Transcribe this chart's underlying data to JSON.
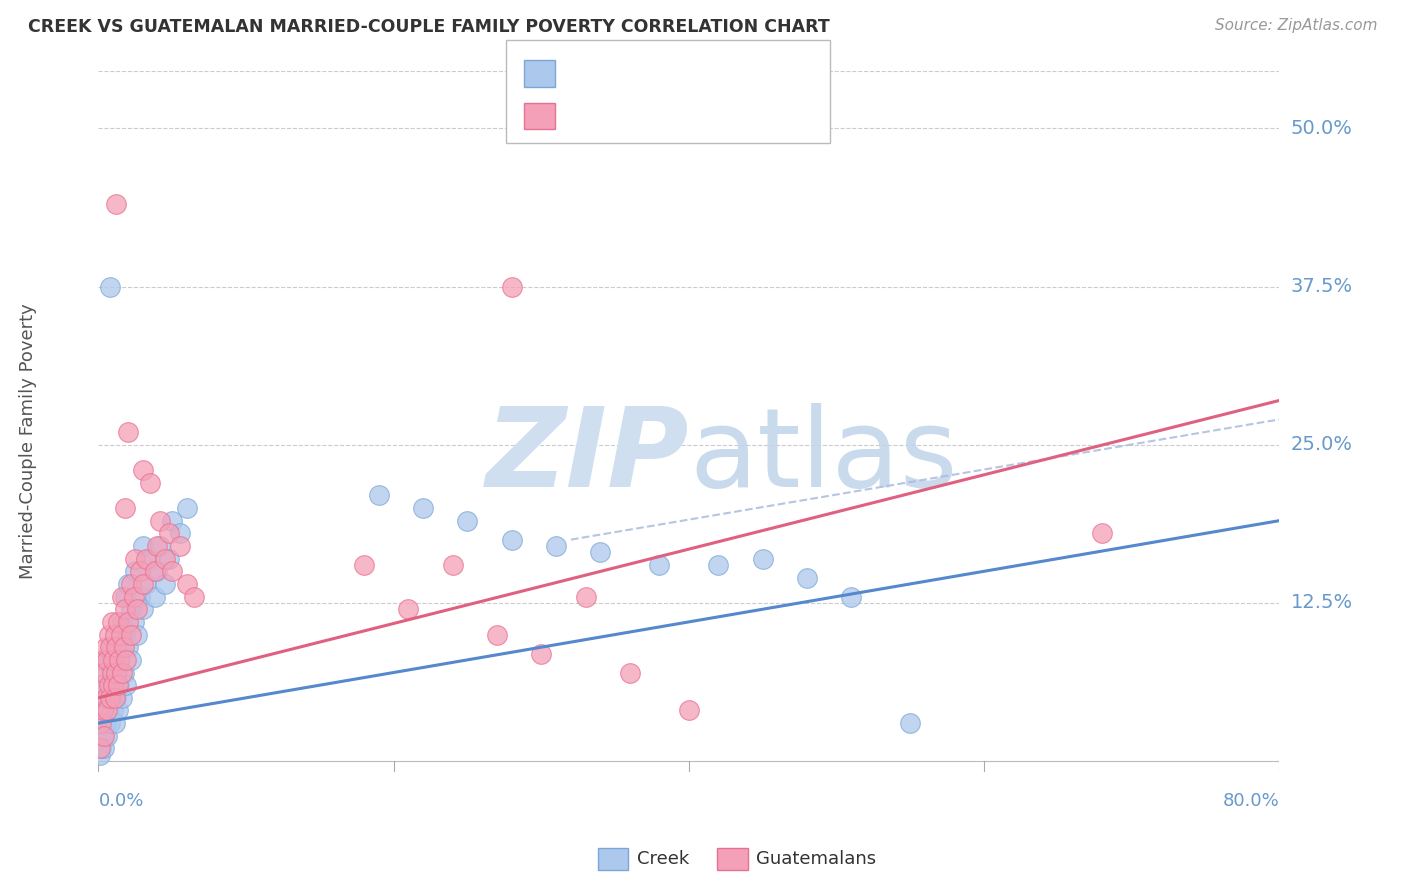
{
  "title": "CREEK VS GUATEMALAN MARRIED-COUPLE FAMILY POVERTY CORRELATION CHART",
  "source": "Source: ZipAtlas.com",
  "ylabel": "Married-Couple Family Poverty",
  "ytick_labels": [
    "50.0%",
    "37.5%",
    "25.0%",
    "12.5%"
  ],
  "ytick_values": [
    0.5,
    0.375,
    0.25,
    0.125
  ],
  "xmin": 0.0,
  "xmax": 0.8,
  "ymin": -0.04,
  "ymax": 0.545,
  "creek_color": "#adc8ed",
  "guatemalan_color": "#f4a0b8",
  "creek_edge_color": "#7ba7d8",
  "guatemalan_edge_color": "#e87090",
  "creek_line_color": "#5588cc",
  "guatemalan_line_color": "#e06080",
  "watermark_color": "#d0dff0",
  "background_color": "#ffffff",
  "grid_color": "#cccccc",
  "tick_label_color": "#6699cc",
  "title_color": "#333333",
  "source_color": "#999999",
  "ylabel_color": "#555555",
  "creek_points": [
    [
      0.001,
      0.005
    ],
    [
      0.002,
      0.01
    ],
    [
      0.002,
      0.03
    ],
    [
      0.003,
      0.02
    ],
    [
      0.003,
      0.04
    ],
    [
      0.004,
      0.01
    ],
    [
      0.004,
      0.06
    ],
    [
      0.005,
      0.03
    ],
    [
      0.005,
      0.07
    ],
    [
      0.006,
      0.02
    ],
    [
      0.006,
      0.05
    ],
    [
      0.007,
      0.04
    ],
    [
      0.007,
      0.08
    ],
    [
      0.008,
      0.03
    ],
    [
      0.008,
      0.06
    ],
    [
      0.009,
      0.05
    ],
    [
      0.009,
      0.09
    ],
    [
      0.01,
      0.04
    ],
    [
      0.01,
      0.07
    ],
    [
      0.011,
      0.03
    ],
    [
      0.011,
      0.06
    ],
    [
      0.012,
      0.05
    ],
    [
      0.012,
      0.08
    ],
    [
      0.013,
      0.04
    ],
    [
      0.013,
      0.07
    ],
    [
      0.014,
      0.06
    ],
    [
      0.015,
      0.09
    ],
    [
      0.016,
      0.05
    ],
    [
      0.016,
      0.11
    ],
    [
      0.017,
      0.07
    ],
    [
      0.018,
      0.1
    ],
    [
      0.018,
      0.13
    ],
    [
      0.019,
      0.06
    ],
    [
      0.02,
      0.09
    ],
    [
      0.02,
      0.14
    ],
    [
      0.022,
      0.08
    ],
    [
      0.022,
      0.12
    ],
    [
      0.024,
      0.11
    ],
    [
      0.025,
      0.15
    ],
    [
      0.026,
      0.1
    ],
    [
      0.028,
      0.13
    ],
    [
      0.03,
      0.12
    ],
    [
      0.03,
      0.17
    ],
    [
      0.032,
      0.14
    ],
    [
      0.035,
      0.16
    ],
    [
      0.038,
      0.13
    ],
    [
      0.04,
      0.15
    ],
    [
      0.042,
      0.17
    ],
    [
      0.045,
      0.14
    ],
    [
      0.048,
      0.16
    ],
    [
      0.05,
      0.19
    ],
    [
      0.055,
      0.18
    ],
    [
      0.06,
      0.2
    ],
    [
      0.008,
      0.375
    ],
    [
      0.19,
      0.21
    ],
    [
      0.22,
      0.2
    ],
    [
      0.25,
      0.19
    ],
    [
      0.28,
      0.175
    ],
    [
      0.31,
      0.17
    ],
    [
      0.34,
      0.165
    ],
    [
      0.38,
      0.155
    ],
    [
      0.42,
      0.155
    ],
    [
      0.45,
      0.16
    ],
    [
      0.48,
      0.145
    ],
    [
      0.51,
      0.13
    ],
    [
      0.55,
      0.03
    ]
  ],
  "guatemalan_points": [
    [
      0.001,
      0.01
    ],
    [
      0.002,
      0.03
    ],
    [
      0.002,
      0.06
    ],
    [
      0.003,
      0.04
    ],
    [
      0.003,
      0.08
    ],
    [
      0.004,
      0.02
    ],
    [
      0.004,
      0.07
    ],
    [
      0.005,
      0.05
    ],
    [
      0.005,
      0.09
    ],
    [
      0.006,
      0.04
    ],
    [
      0.006,
      0.08
    ],
    [
      0.007,
      0.06
    ],
    [
      0.007,
      0.1
    ],
    [
      0.008,
      0.05
    ],
    [
      0.008,
      0.09
    ],
    [
      0.009,
      0.07
    ],
    [
      0.009,
      0.11
    ],
    [
      0.01,
      0.06
    ],
    [
      0.01,
      0.08
    ],
    [
      0.011,
      0.05
    ],
    [
      0.011,
      0.1
    ],
    [
      0.012,
      0.07
    ],
    [
      0.012,
      0.09
    ],
    [
      0.013,
      0.06
    ],
    [
      0.013,
      0.11
    ],
    [
      0.014,
      0.08
    ],
    [
      0.015,
      0.1
    ],
    [
      0.016,
      0.07
    ],
    [
      0.016,
      0.13
    ],
    [
      0.017,
      0.09
    ],
    [
      0.018,
      0.12
    ],
    [
      0.018,
      0.2
    ],
    [
      0.019,
      0.08
    ],
    [
      0.02,
      0.11
    ],
    [
      0.02,
      0.26
    ],
    [
      0.022,
      0.1
    ],
    [
      0.022,
      0.14
    ],
    [
      0.024,
      0.13
    ],
    [
      0.025,
      0.16
    ],
    [
      0.026,
      0.12
    ],
    [
      0.028,
      0.15
    ],
    [
      0.03,
      0.14
    ],
    [
      0.03,
      0.23
    ],
    [
      0.032,
      0.16
    ],
    [
      0.035,
      0.22
    ],
    [
      0.038,
      0.15
    ],
    [
      0.04,
      0.17
    ],
    [
      0.042,
      0.19
    ],
    [
      0.045,
      0.16
    ],
    [
      0.048,
      0.18
    ],
    [
      0.05,
      0.15
    ],
    [
      0.055,
      0.17
    ],
    [
      0.06,
      0.14
    ],
    [
      0.065,
      0.13
    ],
    [
      0.012,
      0.44
    ],
    [
      0.28,
      0.375
    ],
    [
      0.18,
      0.155
    ],
    [
      0.21,
      0.12
    ],
    [
      0.24,
      0.155
    ],
    [
      0.27,
      0.1
    ],
    [
      0.3,
      0.085
    ],
    [
      0.33,
      0.13
    ],
    [
      0.36,
      0.07
    ],
    [
      0.4,
      0.04
    ],
    [
      0.68,
      0.18
    ]
  ],
  "creek_line": {
    "x0": 0.0,
    "x1": 0.8,
    "y0": 0.03,
    "y1": 0.19
  },
  "guatemalan_line": {
    "x0": 0.0,
    "x1": 0.8,
    "y0": 0.05,
    "y1": 0.285
  },
  "creek_ci_line": {
    "x0": 0.32,
    "x1": 0.8,
    "y0": 0.175,
    "y1": 0.27
  }
}
